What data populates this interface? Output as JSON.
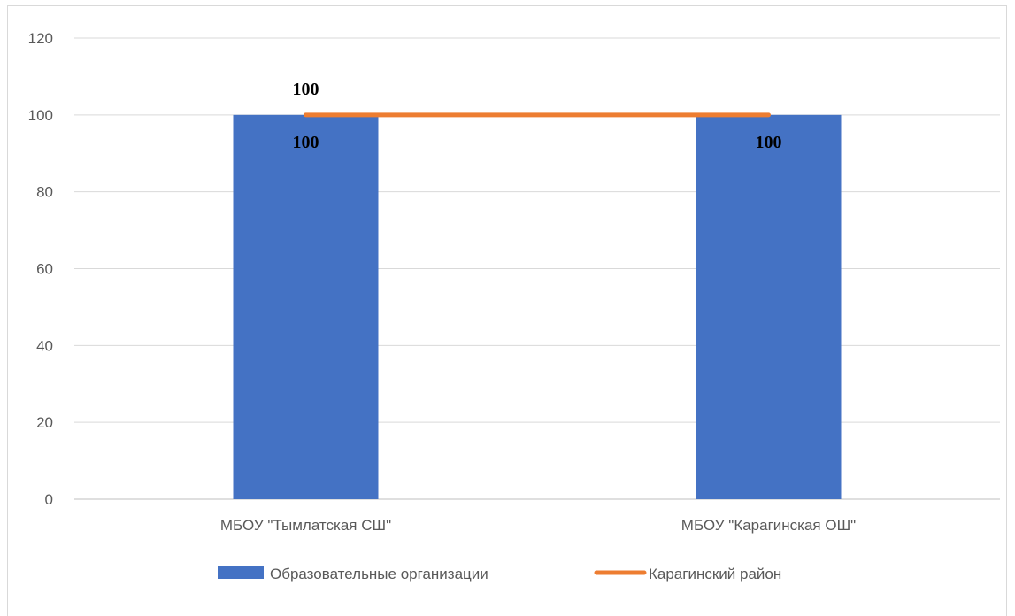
{
  "chart_data": {
    "type": "bar",
    "categories": [
      "МБОУ \"Тымлатская СШ\"",
      "МБОУ \"Карагинская ОШ\""
    ],
    "series": [
      {
        "name": "Образовательные организации",
        "type": "bar",
        "values": [
          100,
          100
        ],
        "color": "#4472c4",
        "data_labels": [
          "100",
          "100"
        ]
      },
      {
        "name": "Карагинский район",
        "type": "line",
        "values": [
          100,
          100
        ],
        "color": "#ed7d31",
        "data_labels": [
          "100"
        ]
      }
    ],
    "ylim": [
      0,
      120
    ],
    "yticks": [
      0,
      20,
      40,
      60,
      80,
      100,
      120
    ],
    "grid": true,
    "legend_position": "bottom",
    "title": "",
    "xlabel": "",
    "ylabel": ""
  }
}
